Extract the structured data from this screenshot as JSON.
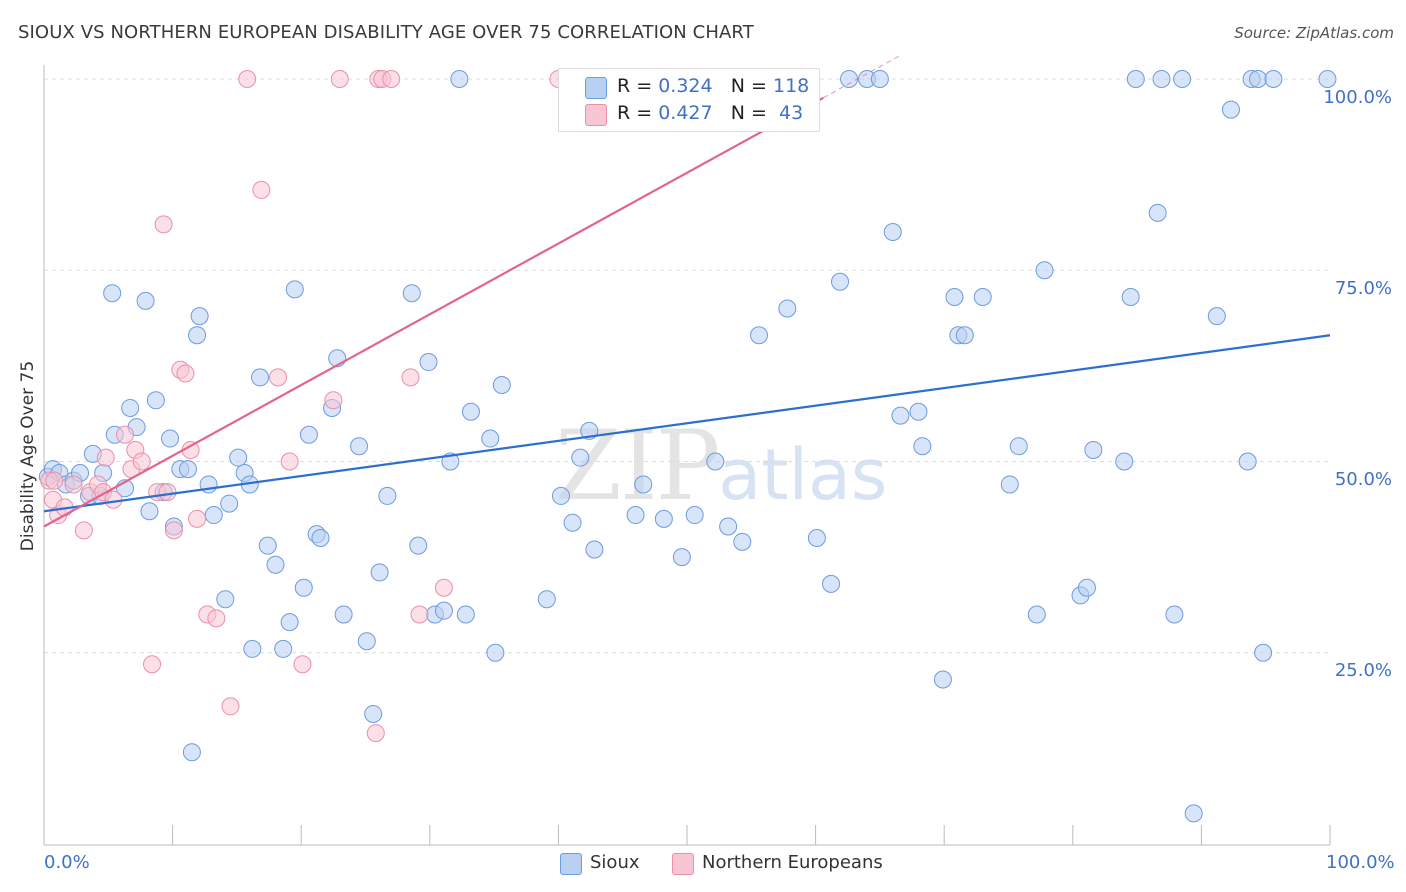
{
  "title": "SIOUX VS NORTHERN EUROPEAN DISABILITY AGE OVER 75 CORRELATION CHART",
  "source": "Source: ZipAtlas.com",
  "watermark": {
    "zip": "ZIP",
    "atlas": "atlas"
  },
  "legend": {
    "sioux": {
      "r_label": "R =",
      "r": "0.324",
      "n_label": "N =",
      "n": "118"
    },
    "northern": {
      "r_label": "R =",
      "r": "0.427",
      "n_label": "N =",
      "n": "43"
    }
  },
  "bottom_legend": {
    "sioux": "Sioux",
    "northern": "Northern Europeans"
  },
  "colors": {
    "sioux_fill": "#b8d0f2",
    "sioux_stroke": "#6d9bdf",
    "sioux_line": "#2d6fcf",
    "northern_fill": "#f8c6d3",
    "northern_stroke": "#ec8fab",
    "northern_line": "#e2648e",
    "tick_text": "#3f72c6"
  },
  "chart_data": {
    "type": "scatter",
    "title": "SIOUX VS NORTHERN EUROPEAN DISABILITY AGE OVER 75 CORRELATION CHART",
    "xlabel": "",
    "ylabel": "Disability Age Over 75",
    "xlim": [
      0,
      100
    ],
    "ylim": [
      0,
      104
    ],
    "x_tick_labels": [
      "0.0%",
      "100.0%"
    ],
    "y_tick_labels": [
      "25.0%",
      "50.0%",
      "75.0%",
      "100.0%"
    ],
    "y_tick_values": [
      25,
      50,
      75,
      100
    ],
    "grid": "horizontal dashed",
    "series": [
      {
        "name": "Sioux",
        "trend": {
          "x": [
            0,
            100
          ],
          "y": [
            43.5,
            66.5
          ]
        },
        "points": [
          [
            0.3,
            48
          ],
          [
            0.7,
            49
          ],
          [
            1.2,
            48.5
          ],
          [
            1.7,
            47
          ],
          [
            2.3,
            47.5
          ],
          [
            2.8,
            48.5
          ],
          [
            3.5,
            45.5
          ],
          [
            3.8,
            51
          ],
          [
            4.4,
            45.5
          ],
          [
            4.6,
            48.5
          ],
          [
            5.3,
            72
          ],
          [
            5.5,
            53.5
          ],
          [
            6.3,
            46.5
          ],
          [
            6.7,
            57
          ],
          [
            7.2,
            54.5
          ],
          [
            7.9,
            71
          ],
          [
            8.2,
            43.5
          ],
          [
            8.7,
            58
          ],
          [
            9.3,
            46
          ],
          [
            9.8,
            53
          ],
          [
            10.1,
            41.5
          ],
          [
            10.6,
            49
          ],
          [
            11.2,
            49
          ],
          [
            11.9,
            66.5
          ],
          [
            12.1,
            69
          ],
          [
            12.8,
            47
          ],
          [
            13.2,
            43
          ],
          [
            14.1,
            32
          ],
          [
            14.4,
            44.5
          ],
          [
            15.1,
            50.5
          ],
          [
            15.6,
            48.5
          ],
          [
            16.0,
            47
          ],
          [
            16.2,
            25.5
          ],
          [
            16.8,
            61
          ],
          [
            17.4,
            39
          ],
          [
            18.0,
            36.5
          ],
          [
            18.6,
            25.5
          ],
          [
            19.1,
            29
          ],
          [
            19.5,
            72.5
          ],
          [
            20.2,
            33.5
          ],
          [
            20.6,
            53.5
          ],
          [
            21.2,
            40.5
          ],
          [
            21.5,
            40
          ],
          [
            22.4,
            57
          ],
          [
            22.8,
            63.5
          ],
          [
            23.3,
            30
          ],
          [
            24.5,
            52
          ],
          [
            25.1,
            26.5
          ],
          [
            25.6,
            17
          ],
          [
            26.1,
            35.5
          ],
          [
            26.7,
            45.5
          ],
          [
            28.6,
            72
          ],
          [
            29.1,
            39
          ],
          [
            29.9,
            63
          ],
          [
            30.4,
            30
          ],
          [
            31.1,
            30.5
          ],
          [
            31.6,
            50
          ],
          [
            32.3,
            100
          ],
          [
            32.8,
            30
          ],
          [
            33.2,
            56.5
          ],
          [
            34.7,
            53
          ],
          [
            35.1,
            25
          ],
          [
            35.6,
            60
          ],
          [
            39.1,
            32
          ],
          [
            40.2,
            45.5
          ],
          [
            41.1,
            42
          ],
          [
            41.7,
            50.5
          ],
          [
            42.4,
            54
          ],
          [
            42.8,
            38.5
          ],
          [
            46.0,
            43
          ],
          [
            46.6,
            47
          ],
          [
            48.2,
            42.5
          ],
          [
            49.6,
            37.5
          ],
          [
            50.6,
            43
          ],
          [
            52.2,
            50
          ],
          [
            53.2,
            41.5
          ],
          [
            54.3,
            39.5
          ],
          [
            55.6,
            66.5
          ],
          [
            57.8,
            70
          ],
          [
            60.1,
            40
          ],
          [
            61.2,
            34
          ],
          [
            61.9,
            73.5
          ],
          [
            62.6,
            100
          ],
          [
            64.0,
            100
          ],
          [
            65.0,
            100
          ],
          [
            66.0,
            80
          ],
          [
            66.6,
            56
          ],
          [
            68.0,
            56.5
          ],
          [
            68.3,
            52
          ],
          [
            69.9,
            21.5
          ],
          [
            70.8,
            71.5
          ],
          [
            71.1,
            66.5
          ],
          [
            71.6,
            66.5
          ],
          [
            73.0,
            71.5
          ],
          [
            75.1,
            47
          ],
          [
            75.8,
            52
          ],
          [
            77.2,
            30
          ],
          [
            77.8,
            75
          ],
          [
            80.6,
            32.5
          ],
          [
            81.1,
            33.5
          ],
          [
            81.6,
            51.5
          ],
          [
            84.0,
            50
          ],
          [
            84.5,
            71.5
          ],
          [
            84.9,
            100
          ],
          [
            86.6,
            82.5
          ],
          [
            86.9,
            100
          ],
          [
            87.9,
            30
          ],
          [
            88.5,
            100
          ],
          [
            89.4,
            4
          ],
          [
            91.2,
            69
          ],
          [
            92.3,
            96
          ],
          [
            93.6,
            50
          ],
          [
            93.9,
            100
          ],
          [
            94.4,
            100
          ],
          [
            94.8,
            25
          ],
          [
            95.6,
            100
          ],
          [
            99.8,
            100
          ],
          [
            11.5,
            12
          ]
        ]
      },
      {
        "name": "Northern Europeans",
        "trend": {
          "x": [
            0,
            66.5
          ],
          "y": [
            41.5,
            103
          ]
        },
        "trend_solid_to_x": 60.6,
        "points": [
          [
            0.4,
            47.5
          ],
          [
            0.7,
            45
          ],
          [
            1.1,
            43
          ],
          [
            1.6,
            44
          ],
          [
            2.3,
            47
          ],
          [
            3.1,
            41
          ],
          [
            3.6,
            46
          ],
          [
            4.2,
            47
          ],
          [
            4.6,
            46
          ],
          [
            4.8,
            50.5
          ],
          [
            5.4,
            45
          ],
          [
            6.3,
            53.5
          ],
          [
            6.8,
            49
          ],
          [
            7.1,
            51.5
          ],
          [
            7.6,
            50
          ],
          [
            8.4,
            23.5
          ],
          [
            8.8,
            46
          ],
          [
            9.3,
            81
          ],
          [
            9.6,
            46
          ],
          [
            10.1,
            41
          ],
          [
            10.6,
            62
          ],
          [
            11.0,
            61.5
          ],
          [
            11.4,
            51.5
          ],
          [
            11.9,
            42.5
          ],
          [
            12.7,
            30
          ],
          [
            13.4,
            29.5
          ],
          [
            14.5,
            18
          ],
          [
            15.8,
            100
          ],
          [
            16.9,
            85.5
          ],
          [
            18.2,
            61
          ],
          [
            19.1,
            50
          ],
          [
            20.1,
            23.5
          ],
          [
            22.5,
            58
          ],
          [
            23.0,
            100
          ],
          [
            25.8,
            14.5
          ],
          [
            26.0,
            100
          ],
          [
            26.3,
            100
          ],
          [
            27.0,
            100
          ],
          [
            28.5,
            61
          ],
          [
            29.2,
            30
          ],
          [
            31.1,
            33.5
          ],
          [
            40.0,
            100
          ],
          [
            0.8,
            47.5
          ]
        ]
      }
    ]
  }
}
